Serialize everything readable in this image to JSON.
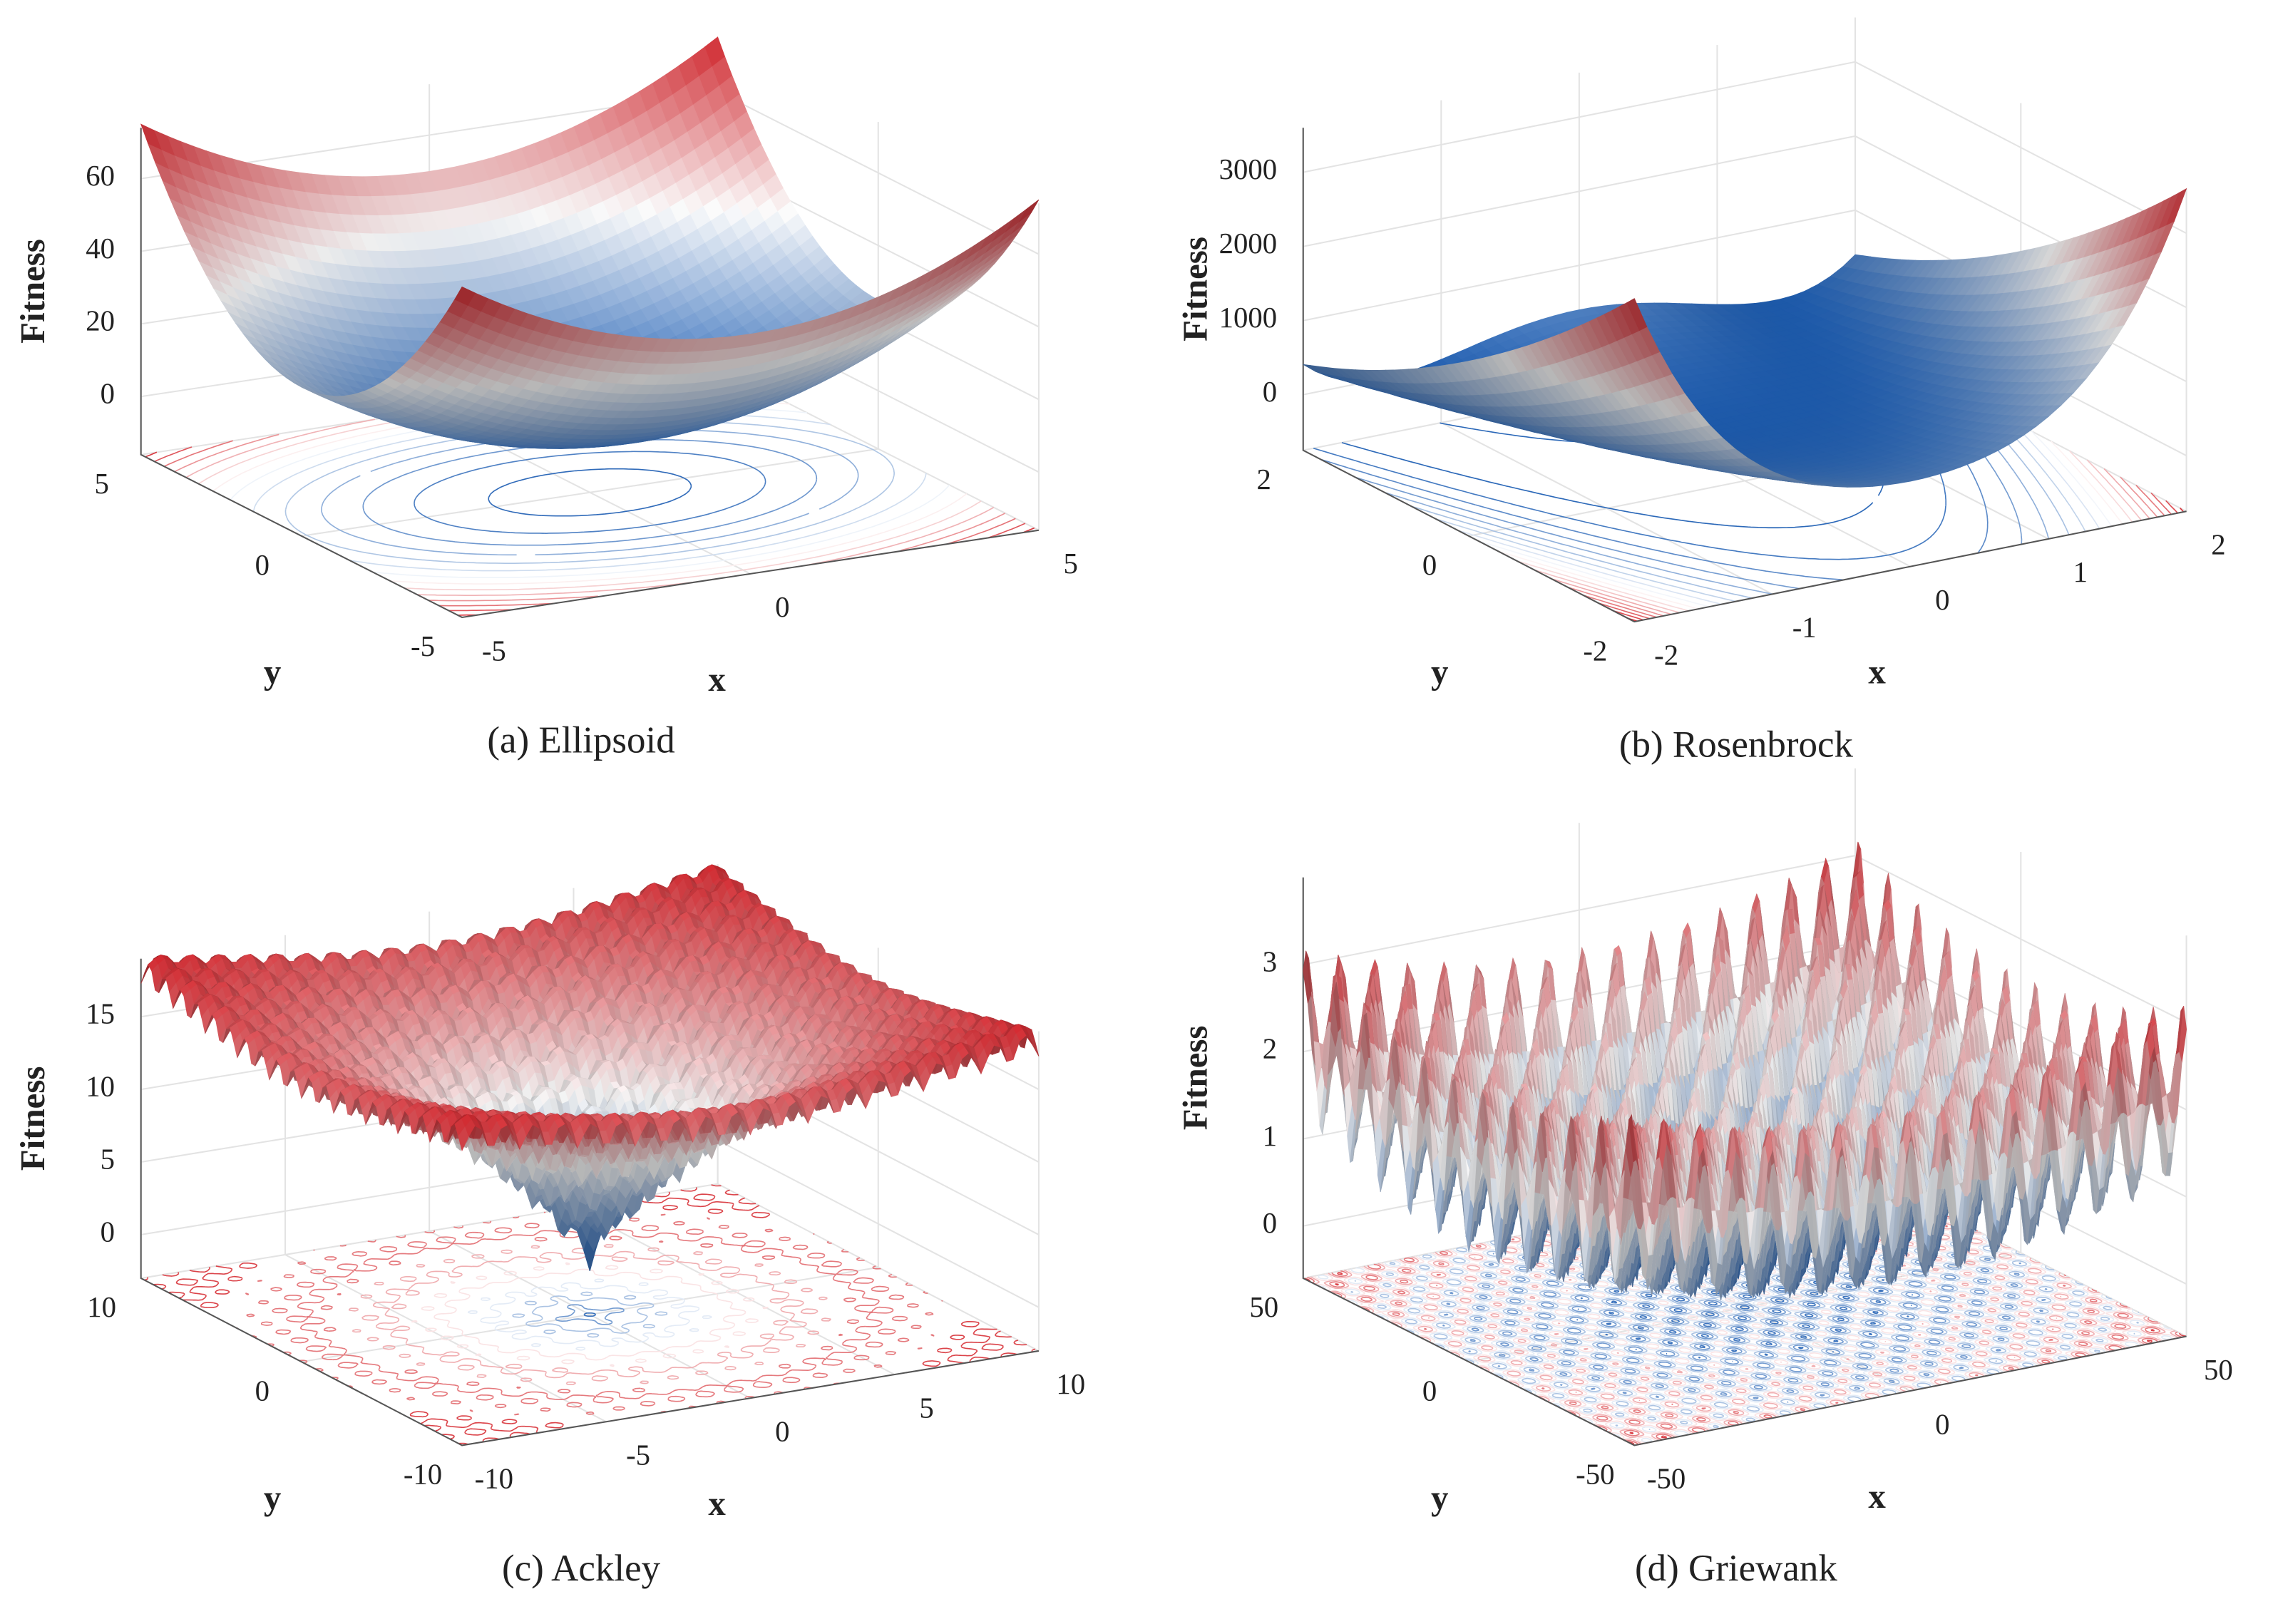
{
  "chart_data": [
    {
      "type": "surface",
      "title": "(a) Ellipsoid",
      "xlabel": "x",
      "ylabel": "y",
      "zlabel": "Fitness",
      "xlim": [
        -5,
        5
      ],
      "ylim": [
        -5,
        5
      ],
      "zlim": [
        -16,
        74
      ],
      "xticks": [
        -5,
        0,
        5
      ],
      "yticks": [
        -5,
        0,
        5
      ],
      "zticks": [
        0,
        20,
        40,
        60
      ],
      "grid": true,
      "colormap": [
        "#1f5fb4",
        "#ffffff",
        "#d6282f"
      ]
    },
    {
      "type": "surface",
      "title": "(b) Rosenbrock",
      "xlabel": "x",
      "ylabel": "y",
      "zlabel": "Fitness",
      "xlim": [
        -2,
        2
      ],
      "ylim": [
        -2,
        2
      ],
      "zlim": [
        -750,
        3600
      ],
      "xticks": [
        -2,
        -1,
        0,
        1,
        2
      ],
      "yticks": [
        -2,
        0,
        2
      ],
      "zticks": [
        0,
        1000,
        2000,
        3000
      ],
      "grid": true,
      "colormap": [
        "#1f5fb4",
        "#ffffff",
        "#d6282f"
      ]
    },
    {
      "type": "surface",
      "title": "(c) Ackley",
      "xlabel": "x",
      "ylabel": "y",
      "zlabel": "Fitness",
      "xlim": [
        -10,
        10
      ],
      "ylim": [
        -10,
        10
      ],
      "zlim": [
        -3,
        19
      ],
      "xticks": [
        -10,
        -5,
        0,
        5,
        10
      ],
      "yticks": [
        -10,
        0,
        10
      ],
      "zticks": [
        0,
        5,
        10,
        15
      ],
      "grid": true,
      "colormap": [
        "#1f5fb4",
        "#ffffff",
        "#d6282f"
      ]
    },
    {
      "type": "surface",
      "title": "(d) Griewank",
      "xlabel": "x",
      "ylabel": "y",
      "zlabel": "Fitness",
      "xlim": [
        -50,
        50
      ],
      "ylim": [
        -50,
        50
      ],
      "zlim": [
        -0.6,
        4
      ],
      "xticks": [
        -50,
        0,
        50
      ],
      "yticks": [
        -50,
        0,
        50
      ],
      "zticks": [
        0,
        1,
        2,
        3
      ],
      "grid": true,
      "colormap": [
        "#1f5fb4",
        "#ffffff",
        "#d6282f"
      ]
    }
  ]
}
